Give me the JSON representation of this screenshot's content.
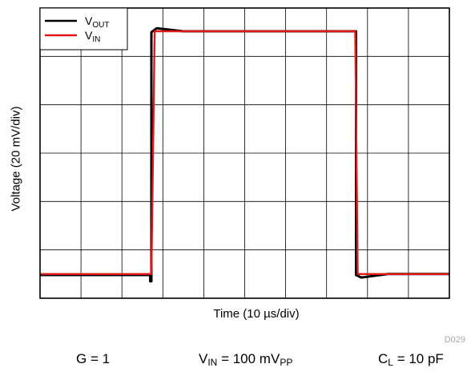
{
  "chart_data": {
    "type": "line",
    "title": "",
    "xlabel": "Time (10 µs/div)",
    "ylabel": "Voltage (20 mV/div)",
    "x_divisions": 10,
    "y_divisions": 6,
    "xlim": [
      0,
      10
    ],
    "ylim": [
      0,
      6
    ],
    "legend_position": "top-left",
    "grid": true,
    "series": [
      {
        "name": "V",
        "subscript": "OUT",
        "color": "#000000",
        "x": [
          0,
          2.69,
          2.69,
          2.72,
          2.72,
          2.85,
          3.5,
          7.7,
          7.7,
          7.72,
          7.72,
          7.85,
          8.5,
          10
        ],
        "y": [
          0.48,
          0.48,
          0.35,
          0.35,
          5.5,
          5.58,
          5.52,
          5.52,
          5.52,
          5.52,
          0.48,
          0.43,
          0.5,
          0.5
        ]
      },
      {
        "name": "V",
        "subscript": "IN",
        "color": "#e01818",
        "x": [
          0,
          2.72,
          2.8,
          7.7,
          7.76,
          10
        ],
        "y": [
          0.5,
          0.5,
          5.52,
          5.52,
          0.5,
          0.5
        ]
      }
    ]
  },
  "axis_labels": {
    "ylabel": "Voltage (20 mV/div)",
    "xlabel": "Time (10 µs/div)"
  },
  "figure_id": "D029",
  "conditions": [
    {
      "main": "G = 1",
      "sub": "",
      "tail": "",
      "sub2": ""
    },
    {
      "main": "V",
      "sub": "IN",
      "tail": " = 100 mV",
      "sub2": "PP"
    },
    {
      "main": "C",
      "sub": "L",
      "tail": " = 10 pF",
      "sub2": ""
    }
  ]
}
